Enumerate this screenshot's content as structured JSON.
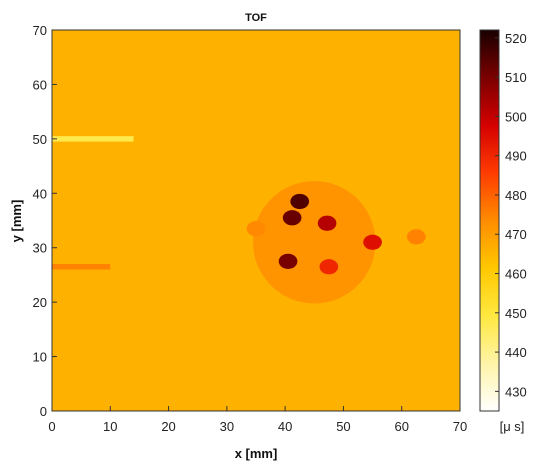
{
  "chart_data": {
    "type": "heatmap",
    "title": "TOF",
    "xlabel": "x [mm]",
    "ylabel": "y [mm]",
    "xlim": [
      0,
      70
    ],
    "ylim": [
      0,
      70
    ],
    "x_ticks": [
      "0",
      "10",
      "20",
      "30",
      "40",
      "50",
      "60",
      "70"
    ],
    "y_ticks": [
      "0",
      "10",
      "20",
      "30",
      "40",
      "50",
      "60",
      "70"
    ],
    "colorbar": {
      "label": "[μ s]",
      "range": [
        425,
        522
      ],
      "ticks": [
        "430",
        "440",
        "450",
        "460",
        "470",
        "480",
        "490",
        "500",
        "510",
        "520"
      ],
      "colormap": [
        "#ffffff",
        "#fff4a8",
        "#ffe840",
        "#ffc800",
        "#ff8c00",
        "#ff3c00",
        "#d40000",
        "#7a0000",
        "#1a0000"
      ]
    },
    "background_value": 466,
    "features": [
      {
        "kind": "defect-disk",
        "center": [
          45,
          31
        ],
        "radius": 10.5,
        "value": 472
      },
      {
        "kind": "hotspot",
        "center": [
          42.5,
          38.5
        ],
        "value": 515
      },
      {
        "kind": "hotspot",
        "center": [
          41.2,
          35.5
        ],
        "value": 512
      },
      {
        "kind": "hotspot",
        "center": [
          47.2,
          34.5
        ],
        "value": 502
      },
      {
        "kind": "hotspot",
        "center": [
          55.0,
          31.0
        ],
        "value": 495
      },
      {
        "kind": "hotspot",
        "center": [
          40.5,
          27.5
        ],
        "value": 510
      },
      {
        "kind": "hotspot",
        "center": [
          47.5,
          26.5
        ],
        "value": 490
      },
      {
        "kind": "hotspot",
        "center": [
          35.0,
          33.5
        ],
        "value": 474
      },
      {
        "kind": "hotspot",
        "center": [
          62.5,
          32.0
        ],
        "value": 475
      },
      {
        "kind": "band",
        "y": 50,
        "x_range": [
          0,
          14
        ],
        "value": 448
      },
      {
        "kind": "band",
        "y": 26.5,
        "x_range": [
          0,
          10
        ],
        "value": 475
      }
    ]
  }
}
